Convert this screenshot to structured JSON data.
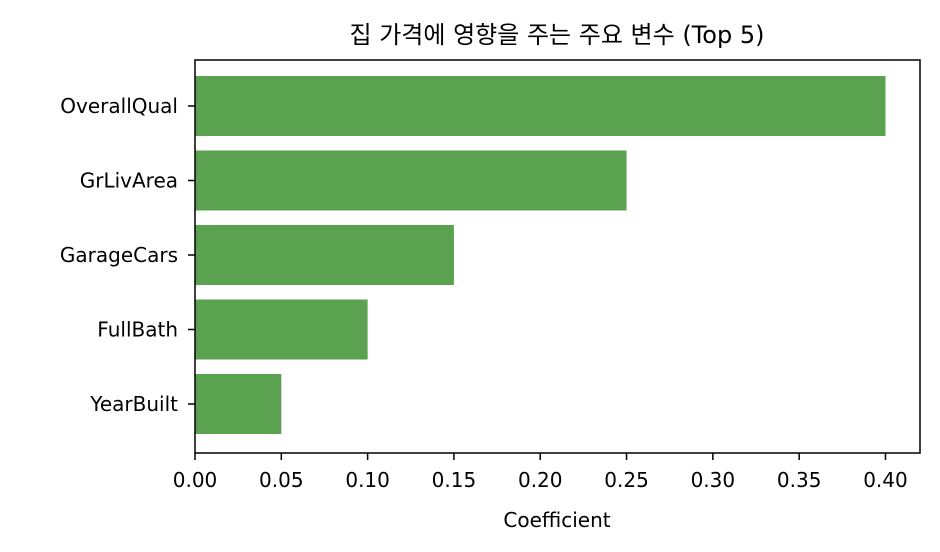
{
  "chart_data": {
    "type": "bar",
    "orientation": "horizontal",
    "title": "집 가격에 영향을 주는 주요 변수 (Top 5)",
    "xlabel": "Coefficient",
    "ylabel": "",
    "categories": [
      "OverallQual",
      "GrLivArea",
      "GarageCars",
      "FullBath",
      "YearBuilt"
    ],
    "values": [
      0.4,
      0.25,
      0.15,
      0.1,
      0.05
    ],
    "xlim": [
      0.0,
      0.42
    ],
    "xticks": [
      "0.00",
      "0.05",
      "0.10",
      "0.15",
      "0.20",
      "0.25",
      "0.30",
      "0.35",
      "0.40"
    ],
    "bar_color": "#5aa150",
    "grid": false,
    "legend": "none"
  }
}
